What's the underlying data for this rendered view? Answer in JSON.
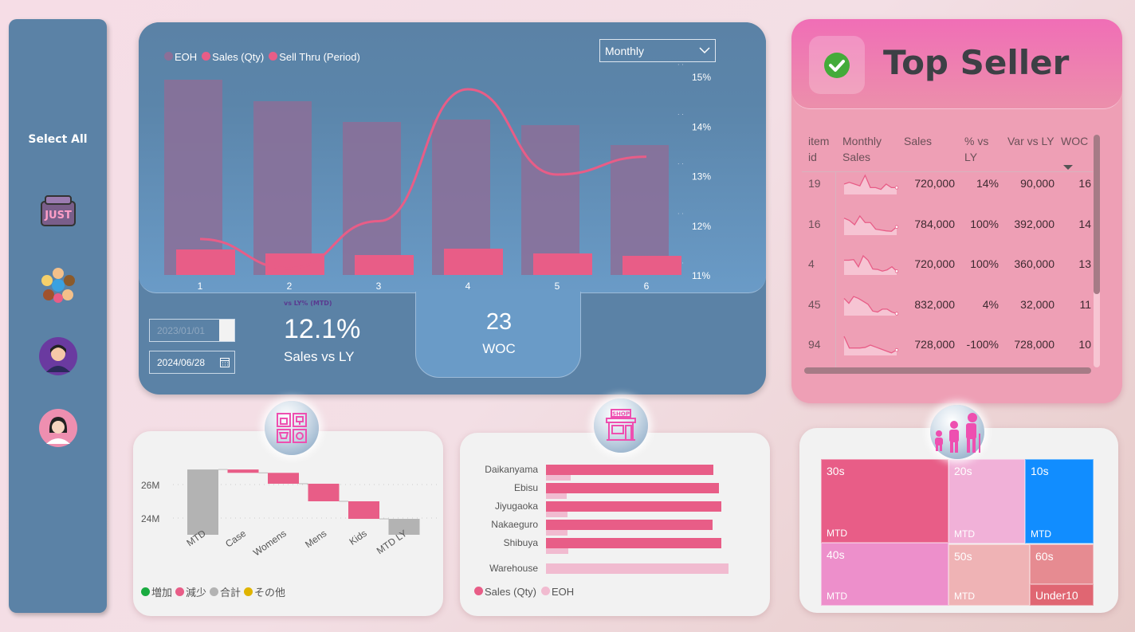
{
  "sidebar": {
    "select_all": "Select All",
    "items": [
      {
        "icon": "just-bag-icon"
      },
      {
        "icon": "kids-group-icon"
      },
      {
        "icon": "man-avatar-icon"
      },
      {
        "icon": "woman-avatar-icon"
      }
    ]
  },
  "main": {
    "legend": [
      {
        "label": "EOH",
        "color": "#8c6f98"
      },
      {
        "label": "Sales (Qty)",
        "color": "#e85d87"
      },
      {
        "label": "Sell Thru (Period)",
        "color": "#e85d87"
      }
    ],
    "period_select": "Monthly",
    "date_start": "2023/01/01",
    "date_end": "2024/06/28",
    "kpi_caption": "vs LY% (MTD)",
    "kpi_value": "12.1%",
    "kpi_label": "Sales vs LY",
    "woc_value": "23",
    "woc_label": "WOC"
  },
  "chart_data": [
    {
      "type": "bar+line",
      "categories": [
        "1",
        "2",
        "3",
        "4",
        "5",
        "6"
      ],
      "series": [
        {
          "name": "EOH",
          "type": "bar",
          "values": [
            245,
            218,
            192,
            195,
            188,
            163
          ]
        },
        {
          "name": "Sales (Qty)",
          "type": "bar",
          "values": [
            32,
            27,
            25,
            33,
            27,
            24
          ]
        },
        {
          "name": "Sell Thru (Period)",
          "type": "line",
          "axis": "right",
          "values": [
            11.74,
            11.15,
            12.1,
            14.76,
            13.04,
            13.4
          ]
        }
      ],
      "y2_ticks": [
        "11%",
        "12%",
        "13%",
        "14%",
        "15%"
      ],
      "y2lim": [
        11,
        15
      ]
    },
    {
      "type": "waterfall",
      "categories": [
        "MTD",
        "Case",
        "Womens",
        "Mens",
        "Kids",
        "MTD LY"
      ],
      "steps": [
        {
          "start": 23,
          "end": 26.9,
          "kind": "total"
        },
        {
          "start": 26.9,
          "end": 26.7,
          "kind": "decrease"
        },
        {
          "start": 26.7,
          "end": 26.05,
          "kind": "decrease"
        },
        {
          "start": 26.05,
          "end": 25.0,
          "kind": "decrease"
        },
        {
          "start": 25.0,
          "end": 23.95,
          "kind": "decrease"
        },
        {
          "start": 23,
          "end": 23.95,
          "kind": "total"
        }
      ],
      "y_ticks": [
        "24M",
        "26M"
      ],
      "ylim": [
        23,
        27
      ],
      "legend": [
        {
          "label": "増加",
          "color": "#1aab40"
        },
        {
          "label": "減少",
          "color": "#e85d87"
        },
        {
          "label": "合計",
          "color": "#b3b3b3"
        },
        {
          "label": "その他",
          "color": "#e0b400"
        }
      ]
    },
    {
      "type": "hbar",
      "categories": [
        "Daikanyama",
        "Ebisu",
        "Jiyugaoka",
        "Nakaeguro",
        "Shibuya",
        "Warehouse"
      ],
      "series": [
        {
          "name": "Sales (Qty)",
          "values": [
            210,
            217,
            220,
            209,
            220,
            0
          ],
          "color": "#e85d87"
        },
        {
          "name": "EOH",
          "values": [
            31,
            26,
            27,
            27,
            28,
            229
          ],
          "color": "#f1bbd0"
        }
      ],
      "legend": [
        {
          "label": "Sales (Qty)",
          "color": "#e85d87"
        },
        {
          "label": "EOH",
          "color": "#f1bbd0"
        }
      ]
    },
    {
      "type": "treemap",
      "tiles": [
        {
          "label": "30s",
          "sub": "MTD",
          "color": "#e85d87"
        },
        {
          "label": "20s",
          "sub": "MTD",
          "color": "#f1b1d8"
        },
        {
          "label": "10s",
          "sub": "MTD",
          "color": "#118dff"
        },
        {
          "label": "40s",
          "sub": "MTD",
          "color": "#ed8fcb"
        },
        {
          "label": "50s",
          "sub": "MTD",
          "color": "#efb3b5"
        },
        {
          "label": "60s",
          "sub": "",
          "color": "#e68b91"
        },
        {
          "label": "Under10",
          "sub": "",
          "color": "#e06672"
        }
      ]
    }
  ],
  "top_seller": {
    "title": "Top Seller",
    "columns": [
      "item id",
      "Monthly Sales",
      "Sales",
      "% vs LY",
      "Var vs LY",
      "WOC"
    ],
    "rows": [
      {
        "id": "19",
        "spark": [
          5,
          6,
          5,
          4,
          10,
          3,
          3,
          2,
          5,
          3,
          3
        ],
        "sales": "720,000",
        "pct": "14%",
        "var": "90,000",
        "woc": "16"
      },
      {
        "id": "16",
        "spark": [
          7,
          6,
          4,
          8,
          5,
          5,
          2,
          1.6,
          1.2,
          1,
          3
        ],
        "sales": "784,000",
        "pct": "100%",
        "var": "392,000",
        "woc": "14"
      },
      {
        "id": "4",
        "spark": [
          6,
          6,
          6.3,
          3,
          8,
          6,
          2,
          1.8,
          1,
          1.6,
          3,
          1
        ],
        "sales": "720,000",
        "pct": "100%",
        "var": "360,000",
        "woc": "13"
      },
      {
        "id": "45",
        "spark": [
          8,
          5.5,
          9,
          8,
          6.5,
          5,
          1.5,
          1,
          2.5,
          2.5,
          1,
          0.2
        ],
        "sales": "832,000",
        "pct": "4%",
        "var": "32,000",
        "woc": "11"
      },
      {
        "id": "94",
        "spark": [
          9,
          3,
          3,
          3,
          3.3,
          4.5,
          3.5,
          2.5,
          1.5,
          0.5,
          2
        ],
        "sales": "728,000",
        "pct": "-100%",
        "var": "728,000",
        "woc": "10"
      }
    ]
  }
}
